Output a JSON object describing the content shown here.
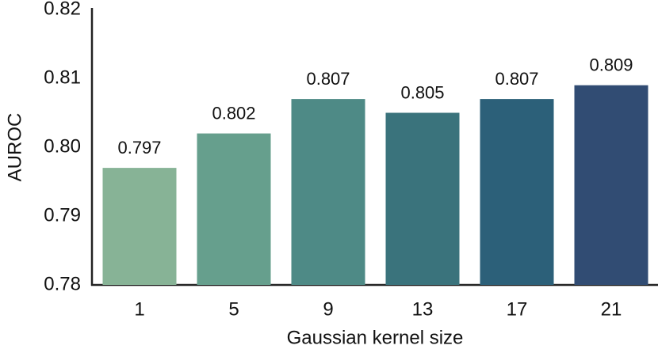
{
  "chart_data": {
    "type": "bar",
    "xlabel": "Gaussian kernel size",
    "ylabel": "AUROC",
    "categories": [
      "1",
      "5",
      "9",
      "13",
      "17",
      "21"
    ],
    "values": [
      0.797,
      0.802,
      0.807,
      0.805,
      0.807,
      0.809
    ],
    "colors": [
      "#87b396",
      "#669f8d",
      "#4e8a86",
      "#3a737c",
      "#2c6079",
      "#314c73"
    ],
    "ylim": [
      0.78,
      0.82
    ],
    "yticks": [
      0.78,
      0.79,
      {
        "value": 0.8,
        "label": "0.80"
      },
      0.81,
      0.82
    ]
  }
}
